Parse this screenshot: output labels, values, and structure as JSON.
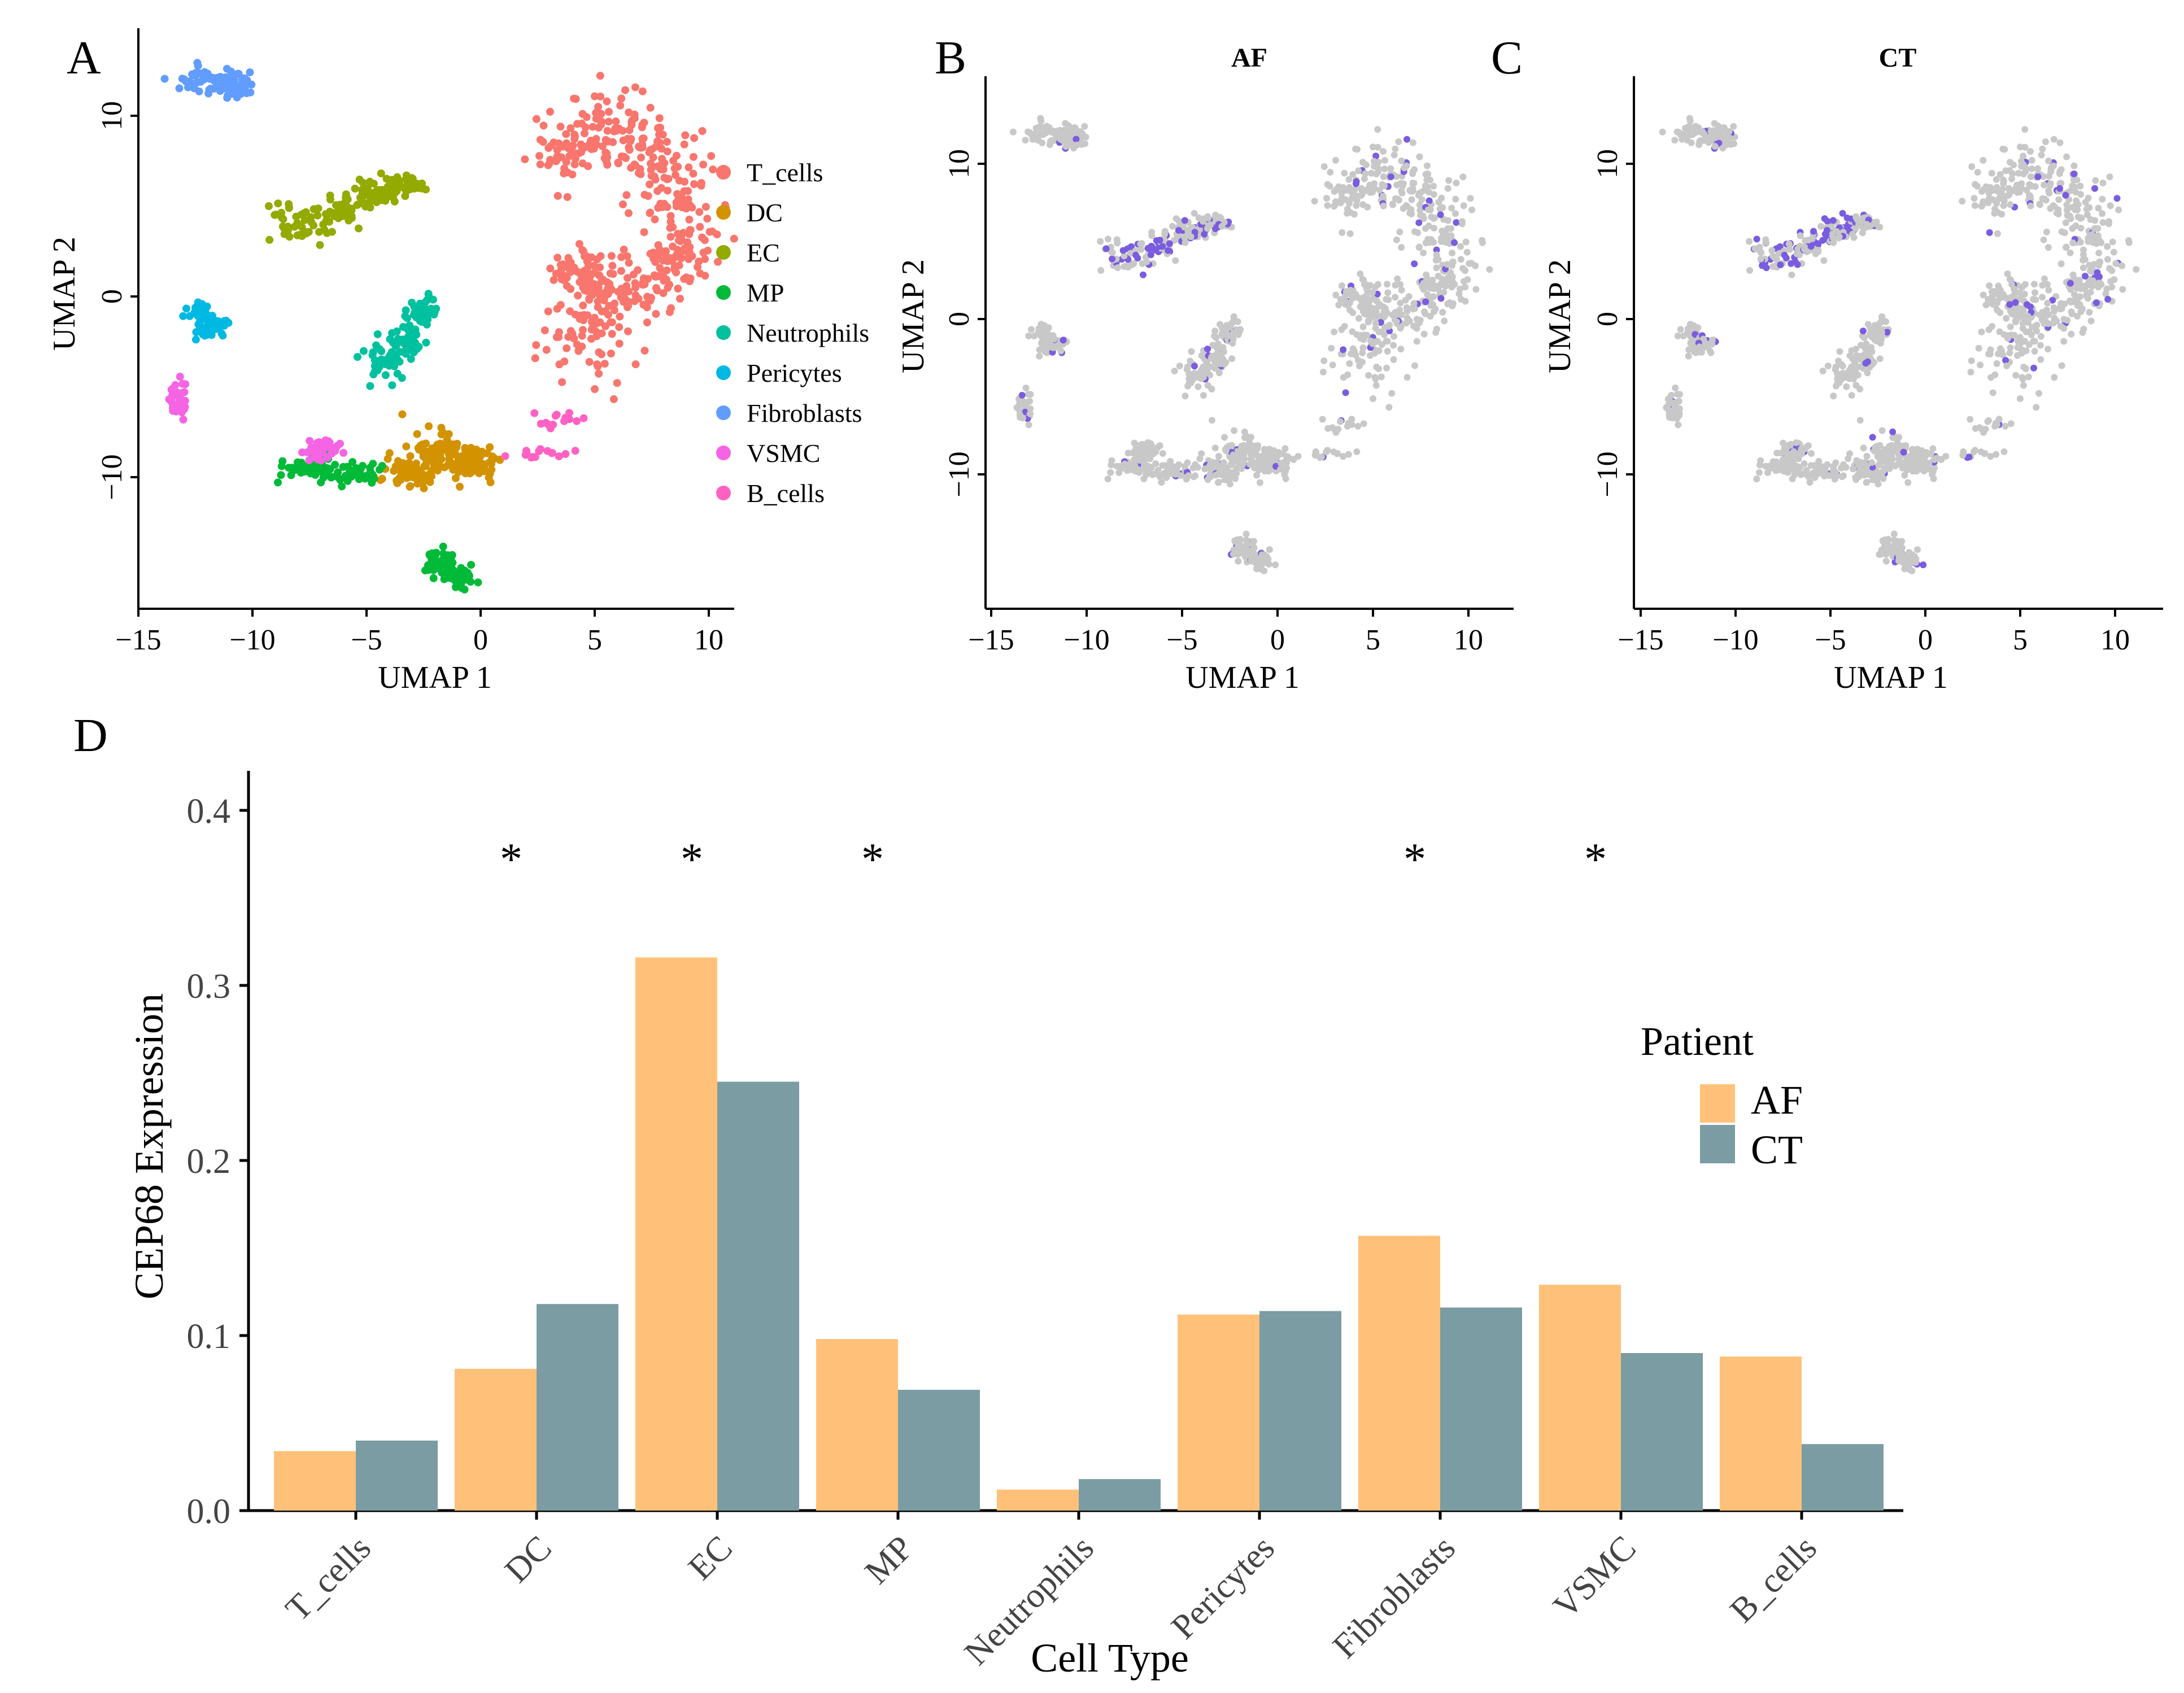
{
  "chart_data": [
    {
      "panel": "A",
      "type": "scatter",
      "xlabel": "UMAP 1",
      "ylabel": "UMAP 2",
      "xticks": [
        "−15",
        "−10",
        "−5",
        "0",
        "5",
        "10"
      ],
      "yticks": [
        "10",
        "0",
        "−10"
      ],
      "xlim": [
        -15.5,
        11.5
      ],
      "ylim": [
        -17.5,
        14.5
      ],
      "legend": [
        {
          "label": "T_cells",
          "color": "#F8766D"
        },
        {
          "label": "DC",
          "color": "#D39200"
        },
        {
          "label": "EC",
          "color": "#93AA00"
        },
        {
          "label": "MP",
          "color": "#00BA38"
        },
        {
          "label": "Neutrophils",
          "color": "#00C19F"
        },
        {
          "label": "Pericytes",
          "color": "#00B9E3"
        },
        {
          "label": "Fibroblasts",
          "color": "#619CFF"
        },
        {
          "label": "VSMC",
          "color": "#F564E3"
        },
        {
          "label": "B_cells",
          "color": "#FF61C3"
        }
      ]
    },
    {
      "panel": "B",
      "type": "scatter",
      "title": "AF",
      "xlabel": "UMAP 1",
      "ylabel": "UMAP 2",
      "xticks": [
        "−15",
        "−10",
        "−5",
        "0",
        "5",
        "10"
      ],
      "yticks": [
        "10",
        "0",
        "−10"
      ],
      "base_color": "#C8C8C8",
      "highlight_color": "#7A5CE0"
    },
    {
      "panel": "C",
      "type": "scatter",
      "title": "CT",
      "xlabel": "UMAP 1",
      "ylabel": "UMAP 2",
      "xticks": [
        "−15",
        "−10",
        "−5",
        "0",
        "5",
        "10"
      ],
      "yticks": [
        "10",
        "0",
        "−10"
      ],
      "base_color": "#C8C8C8",
      "highlight_color": "#7A5CE0"
    },
    {
      "panel": "D",
      "type": "bar",
      "xlabel": "Cell Type",
      "ylabel": "CEP68 Expression",
      "ylim": [
        0,
        0.4
      ],
      "yticks": [
        "0.0",
        "0.1",
        "0.2",
        "0.3",
        "0.4"
      ],
      "categories": [
        "T_cells",
        "DC",
        "EC",
        "MP",
        "Neutrophils",
        "Pericytes",
        "Fibroblasts",
        "VSMC",
        "B_cells"
      ],
      "series": [
        {
          "name": "AF",
          "color": "#FFC179",
          "values": [
            0.034,
            0.081,
            0.316,
            0.098,
            0.012,
            0.112,
            0.157,
            0.129,
            0.088
          ]
        },
        {
          "name": "CT",
          "color": "#7A9CA2",
          "values": [
            0.04,
            0.118,
            0.245,
            0.069,
            0.018,
            0.114,
            0.116,
            0.09,
            0.038
          ]
        }
      ],
      "significance_marker": "*",
      "significant": [
        false,
        true,
        true,
        true,
        false,
        false,
        true,
        true,
        false
      ],
      "legend_title": "Patient"
    }
  ]
}
